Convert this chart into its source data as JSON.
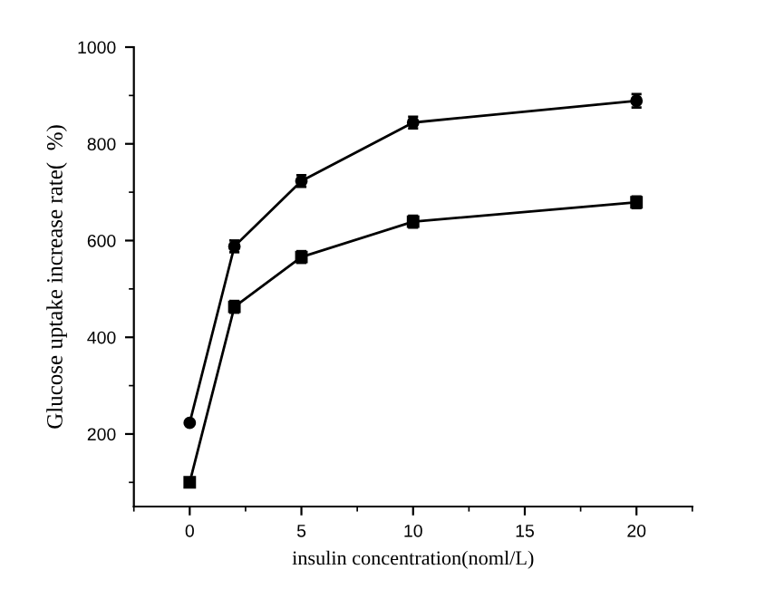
{
  "chart_data": {
    "type": "line",
    "xlabel": "insulin concentration(noml/L)",
    "ylabel": "Glucose uptake increase rate(  %)",
    "xlim": [
      -2.5,
      22.5
    ],
    "xticks": [
      0,
      5,
      10,
      15,
      20
    ],
    "ylim": [
      50,
      1000
    ],
    "yticks": [
      200,
      400,
      600,
      800,
      1000
    ],
    "grid": false,
    "legend": false,
    "line_style": "solid",
    "series": [
      {
        "x": [
          0,
          2,
          5,
          10,
          20
        ],
        "values": [
          223,
          588,
          723,
          844,
          889
        ],
        "errors": [
          null,
          12,
          12,
          12,
          14
        ],
        "color": "#000000",
        "marker": "circle"
      },
      {
        "x": [
          0,
          2,
          5,
          10,
          20
        ],
        "values": [
          100,
          463,
          566,
          639,
          679
        ],
        "errors": [
          null,
          12,
          12,
          12,
          12
        ],
        "color": "#000000",
        "marker": "square"
      }
    ]
  }
}
